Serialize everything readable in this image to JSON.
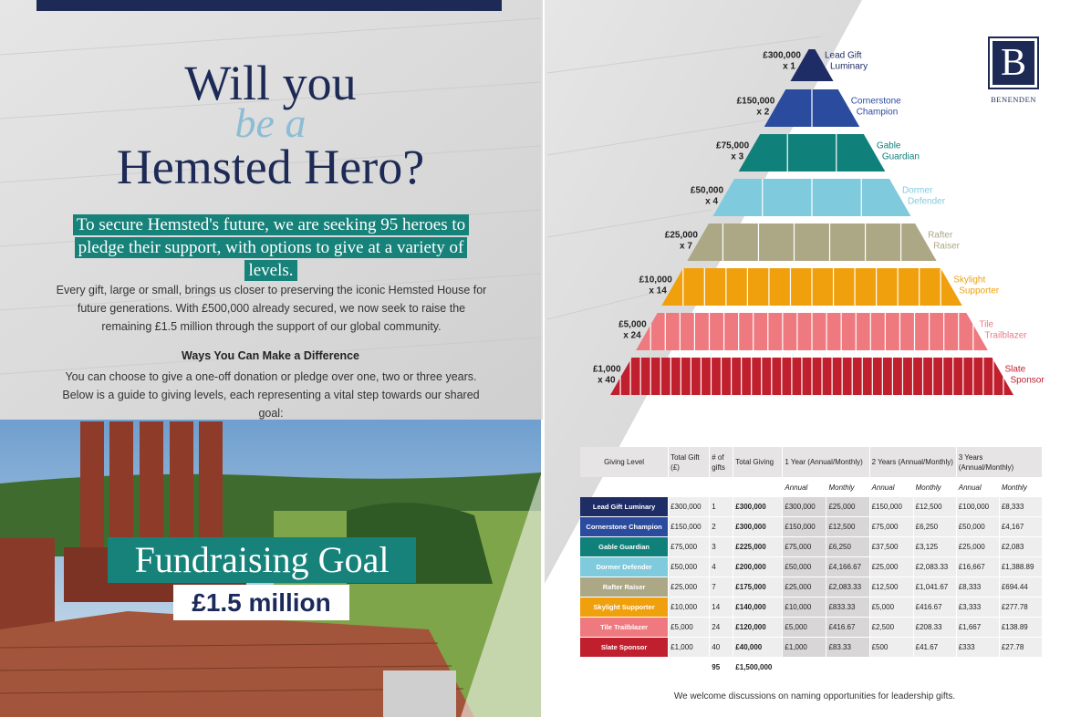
{
  "header": {
    "title_line1": "Will you",
    "title_script": "be a",
    "title_line2": "Hemsted Hero?"
  },
  "intro": "To secure Hemsted's future, we are seeking 95 heroes to pledge their support, with options to give at a variety of levels.",
  "body": "Every gift, large or small, brings us closer to preserving the iconic Hemsted House for future generations. With £500,000 already secured, we now seek to raise the remaining £1.5 million through the support of our global community.",
  "ways_heading": "Ways You Can Make a Difference",
  "ways_text": "You can choose to give a one-off donation or pledge over one, two or three years. Below is a guide to giving levels, each representing a vital step towards our shared goal:",
  "goal": {
    "label": "Fundraising Goal",
    "amount": "£1.5 million"
  },
  "logo": {
    "letter": "B",
    "name": "BENENDEN"
  },
  "pyramid": [
    {
      "amount": "£300,000",
      "count": "x 1",
      "name": [
        "Lead Gift",
        "Luminary"
      ],
      "color": "#1f2d66"
    },
    {
      "amount": "£150,000",
      "count": "x 2",
      "name": [
        "Cornerstone",
        "Champion"
      ],
      "color": "#2b4b9e"
    },
    {
      "amount": "£75,000",
      "count": "x 3",
      "name": [
        "Gable",
        "Guardian"
      ],
      "color": "#10807a"
    },
    {
      "amount": "£50,000",
      "count": "x 4",
      "name": [
        "Dormer",
        "Defender"
      ],
      "color": "#80cade"
    },
    {
      "amount": "£25,000",
      "count": "x 7",
      "name": [
        "Rafter",
        "Raiser"
      ],
      "color": "#aca886"
    },
    {
      "amount": "£10,000",
      "count": "x 14",
      "name": [
        "Skylight",
        "Supporter"
      ],
      "color": "#f0a00c"
    },
    {
      "amount": "£5,000",
      "count": "x 24",
      "name": [
        "Tile",
        "Trailblazer"
      ],
      "color": "#ee7a80"
    },
    {
      "amount": "£1,000",
      "count": "x 40",
      "name": [
        "Slate",
        "Sponsor"
      ],
      "color": "#c01f2e"
    }
  ],
  "table": {
    "headers": [
      "Giving Level",
      "Total Gift (£)",
      "# of gifts",
      "Total Giving",
      "1 Year (Annual/Monthly)",
      "2 Years (Annual/Monthly)",
      "3 Years (Annual/Monthly)"
    ],
    "subheaders": [
      "Annual",
      "Monthly",
      "Annual",
      "Monthly",
      "Annual",
      "Monthly"
    ],
    "rows": [
      [
        "Lead Gift Luminary",
        "£300,000",
        "1",
        "£300,000",
        "£300,000",
        "£25,000",
        "£150,000",
        "£12,500",
        "£100,000",
        "£8,333"
      ],
      [
        "Cornerstone Champion",
        "£150,000",
        "2",
        "£300,000",
        "£150,000",
        "£12,500",
        "£75,000",
        "£6,250",
        "£50,000",
        "£4,167"
      ],
      [
        "Gable Guardian",
        "£75,000",
        "3",
        "£225,000",
        "£75,000",
        "£6,250",
        "£37,500",
        "£3,125",
        "£25,000",
        "£2,083"
      ],
      [
        "Dormer Defender",
        "£50,000",
        "4",
        "£200,000",
        "£50,000",
        "£4,166.67",
        "£25,000",
        "£2,083.33",
        "£16,667",
        "£1,388.89"
      ],
      [
        "Rafter Raiser",
        "£25,000",
        "7",
        "£175,000",
        "£25,000",
        "£2,083.33",
        "£12,500",
        "£1,041.67",
        "£8,333",
        "£694.44"
      ],
      [
        "Skylight Supporter",
        "£10,000",
        "14",
        "£140,000",
        "£10,000",
        "£833.33",
        "£5,000",
        "£416.67",
        "£3,333",
        "£277.78"
      ],
      [
        "Tile Trailblazer",
        "£5,000",
        "24",
        "£120,000",
        "£5,000",
        "£416.67",
        "£2,500",
        "£208.33",
        "£1,667",
        "£138.89"
      ],
      [
        "Slate Sponsor",
        "£1,000",
        "40",
        "£40,000",
        "£1,000",
        "£83.33",
        "£500",
        "£41.67",
        "£333",
        "£27.78"
      ]
    ],
    "total": [
      "95",
      "£1,500,000"
    ]
  },
  "note": "We welcome discussions on naming opportunities for leadership gifts."
}
